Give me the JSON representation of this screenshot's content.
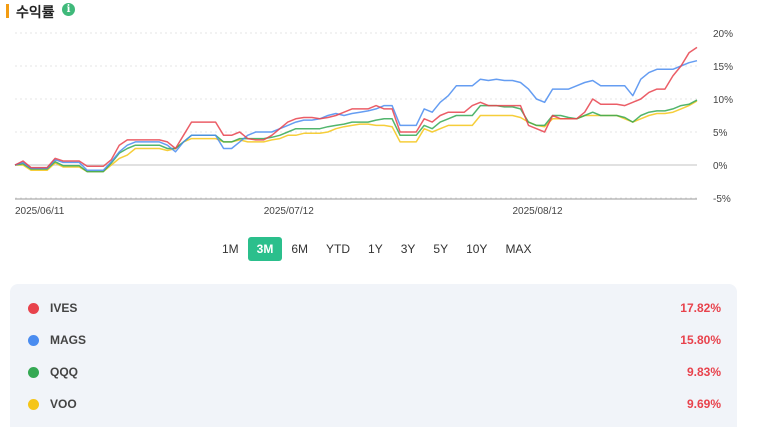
{
  "header": {
    "title": "수익률",
    "info_icon": "info-icon"
  },
  "colors": {
    "accent": "#f39c12",
    "active_range": "#2bbf8c",
    "positive_value": "#e8424c"
  },
  "ranges": {
    "items": [
      "1M",
      "3M",
      "6M",
      "YTD",
      "1Y",
      "3Y",
      "5Y",
      "10Y",
      "MAX"
    ],
    "active": "3M"
  },
  "legend": [
    {
      "name": "IVES",
      "value": "17.82%",
      "color": "#e8424c"
    },
    {
      "name": "MAGS",
      "value": "15.80%",
      "color": "#4a8cf0"
    },
    {
      "name": "QQQ",
      "value": "9.83%",
      "color": "#34a853"
    },
    {
      "name": "VOO",
      "value": "9.69%",
      "color": "#f5c518"
    }
  ],
  "chart_data": {
    "type": "line",
    "y_tick_labels": [
      "20%",
      "15%",
      "10%",
      "5%",
      "0%",
      "-5%"
    ],
    "y_ticks": [
      20,
      15,
      10,
      5,
      0,
      -5
    ],
    "ylim": [
      -5,
      20
    ],
    "x_tick_labels": [
      "2025/06/11",
      "2025/07/12",
      "2025/08/12"
    ],
    "x_tick_index": [
      0,
      31,
      62
    ],
    "grid": true,
    "series": [
      {
        "name": "IVES",
        "color": "#e8424c",
        "values": [
          0,
          0.6,
          -0.4,
          -0.4,
          -0.4,
          1.0,
          0.6,
          0.6,
          0.6,
          -0.2,
          -0.2,
          -0.2,
          0.8,
          3.0,
          3.8,
          3.8,
          3.8,
          3.8,
          3.8,
          3.5,
          2.5,
          4.5,
          6.5,
          6.5,
          6.5,
          6.5,
          4.5,
          4.5,
          5.0,
          4.0,
          3.8,
          3.8,
          4.5,
          5.5,
          6.5,
          7.0,
          7.2,
          7.2,
          7.0,
          7.2,
          7.5,
          8.0,
          8.5,
          8.5,
          8.5,
          9.0,
          8.5,
          8.5,
          5.0,
          5.0,
          5.0,
          7.0,
          6.5,
          7.5,
          8.0,
          8.0,
          8.0,
          9.0,
          9.5,
          9.0,
          9.0,
          9.0,
          9.0,
          9.0,
          6.0,
          5.5,
          5.0,
          7.5,
          7.0,
          7.0,
          7.0,
          8.0,
          10.0,
          9.2,
          9.2,
          9.2,
          9.0,
          9.5,
          10.0,
          11.0,
          11.5,
          11.5,
          13.5,
          15.0,
          17.0,
          17.82
        ]
      },
      {
        "name": "MAGS",
        "color": "#4a8cf0",
        "values": [
          0,
          0.4,
          -0.5,
          -0.5,
          -0.5,
          0.8,
          0.4,
          0.4,
          0.4,
          -0.8,
          -0.8,
          -0.8,
          0.5,
          2.0,
          3.0,
          3.5,
          3.5,
          3.5,
          3.5,
          3.0,
          2.0,
          3.5,
          4.5,
          4.5,
          4.5,
          4.5,
          2.5,
          2.5,
          3.5,
          4.5,
          5.0,
          5.0,
          5.0,
          5.5,
          6.0,
          6.5,
          6.8,
          6.8,
          7.0,
          7.5,
          7.8,
          7.5,
          7.8,
          8.0,
          8.2,
          8.5,
          9.0,
          9.0,
          6.0,
          6.0,
          6.0,
          8.5,
          8.0,
          9.5,
          10.5,
          12.0,
          12.0,
          12.0,
          13.0,
          12.8,
          13.0,
          12.8,
          12.8,
          12.5,
          11.5,
          10.0,
          9.5,
          11.5,
          11.5,
          11.5,
          12.0,
          12.5,
          12.8,
          12.0,
          12.0,
          12.0,
          12.0,
          10.5,
          13.0,
          14.0,
          14.5,
          14.5,
          14.5,
          15.0,
          15.5,
          15.8
        ]
      },
      {
        "name": "QQQ",
        "color": "#34a853",
        "values": [
          0,
          0.2,
          -0.6,
          -0.6,
          -0.6,
          0.5,
          -0.1,
          -0.1,
          -0.1,
          -1.0,
          -1.0,
          -1.0,
          0.3,
          1.8,
          2.5,
          3.0,
          3.0,
          3.0,
          3.0,
          2.5,
          2.5,
          3.5,
          4.5,
          4.5,
          4.5,
          4.5,
          3.5,
          3.5,
          4.0,
          4.0,
          4.0,
          4.0,
          4.2,
          4.5,
          5.0,
          5.5,
          5.5,
          5.5,
          5.5,
          5.8,
          6.0,
          6.2,
          6.5,
          6.5,
          6.5,
          6.8,
          7.0,
          7.0,
          4.5,
          4.5,
          4.5,
          6.0,
          5.5,
          6.5,
          7.0,
          7.5,
          7.5,
          7.5,
          9.0,
          9.0,
          9.0,
          8.8,
          8.8,
          8.5,
          6.5,
          6.0,
          6.0,
          7.5,
          7.5,
          7.2,
          7.0,
          7.5,
          8.0,
          7.5,
          7.5,
          7.5,
          7.2,
          6.5,
          7.5,
          8.0,
          8.2,
          8.2,
          8.5,
          9.0,
          9.2,
          9.83
        ]
      },
      {
        "name": "VOO",
        "color": "#f5c518",
        "values": [
          0,
          0.0,
          -0.8,
          -0.8,
          -0.8,
          0.3,
          -0.3,
          -0.3,
          -0.3,
          -1.0,
          -1.0,
          -1.0,
          0.0,
          1.0,
          1.5,
          2.5,
          2.5,
          2.5,
          2.5,
          2.2,
          2.5,
          3.5,
          4.0,
          4.0,
          4.0,
          4.0,
          3.5,
          3.5,
          3.8,
          3.5,
          3.5,
          3.5,
          3.8,
          4.0,
          4.5,
          4.5,
          4.8,
          4.8,
          4.8,
          5.0,
          5.5,
          5.8,
          6.0,
          6.2,
          6.2,
          6.0,
          6.0,
          5.8,
          3.5,
          3.5,
          3.5,
          5.5,
          5.0,
          5.5,
          6.0,
          6.0,
          6.0,
          6.0,
          7.5,
          7.5,
          7.5,
          7.5,
          7.5,
          7.2,
          6.5,
          6.0,
          5.8,
          7.0,
          7.0,
          7.0,
          7.0,
          7.5,
          7.5,
          7.5,
          7.5,
          7.5,
          7.0,
          6.5,
          7.0,
          7.5,
          7.8,
          7.8,
          8.0,
          8.5,
          9.0,
          9.69
        ]
      }
    ]
  }
}
